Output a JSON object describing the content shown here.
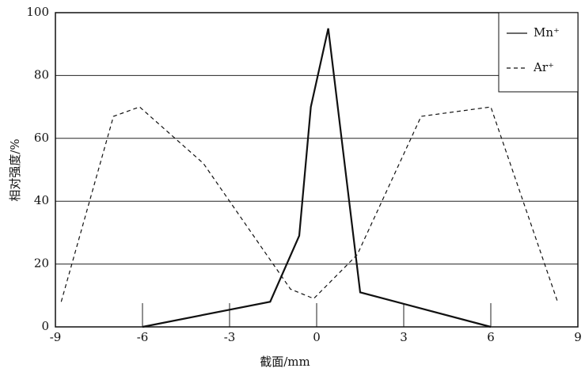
{
  "chart_data": {
    "type": "line",
    "xlabel": "截面/mm",
    "ylabel": "相对强度/%",
    "xlim": [
      -9,
      9
    ],
    "xticks": [
      -9,
      -6,
      -3,
      0,
      3,
      6,
      9
    ],
    "ylim": [
      0,
      100
    ],
    "yticks": [
      0,
      20,
      40,
      60,
      80,
      100
    ],
    "grid": true,
    "legend": "upper right",
    "series": [
      {
        "name": "Mn⁺",
        "color": "#111111",
        "style": "solid",
        "x": [
          -6,
          -1.6,
          -0.6,
          -0.2,
          0.4,
          1.5,
          6
        ],
        "values": [
          0,
          8,
          29,
          70,
          95,
          11,
          0
        ]
      },
      {
        "name": "Ar⁺",
        "color": "#111111",
        "style": "dashed",
        "x": [
          -8.8,
          -7.0,
          -6.1,
          -3.9,
          -0.9,
          -0.1,
          1.4,
          3.6,
          6,
          8.3
        ],
        "values": [
          8,
          67,
          70,
          52,
          12,
          9,
          23,
          67,
          70,
          8
        ]
      }
    ]
  }
}
